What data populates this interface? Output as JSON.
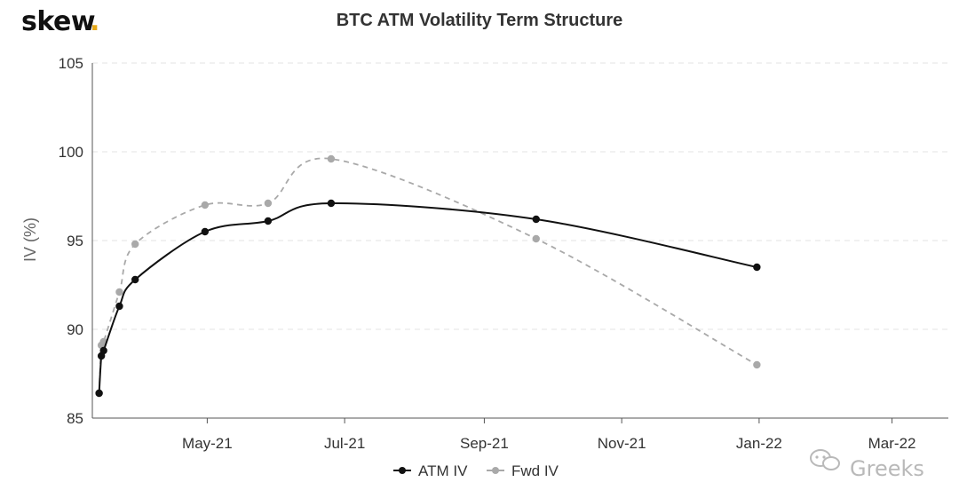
{
  "logo": {
    "text": "skew",
    "dot": ".",
    "dot_color": "#e6a817"
  },
  "watermark": {
    "text": "Greeks"
  },
  "colors": {
    "atm": "#111111",
    "fwd": "#a9a9a9",
    "grid": "#e3e3e3",
    "axis": "#555555"
  },
  "chart_data": {
    "type": "line",
    "title": "BTC ATM Volatility Term Structure",
    "ylabel": "IV (%)",
    "xlabel": "",
    "ylim": [
      85,
      105
    ],
    "yticks": [
      85,
      90,
      95,
      100,
      105
    ],
    "xlim": [
      "2021-03-11",
      "2022-03-26"
    ],
    "xticks": [
      {
        "date": "2021-05-01",
        "label": "May-21"
      },
      {
        "date": "2021-07-01",
        "label": "Jul-21"
      },
      {
        "date": "2021-09-01",
        "label": "Sep-21"
      },
      {
        "date": "2021-11-01",
        "label": "Nov-21"
      },
      {
        "date": "2022-01-01",
        "label": "Jan-22"
      },
      {
        "date": "2022-03-01",
        "label": "Mar-22"
      }
    ],
    "series": [
      {
        "name": "ATM IV",
        "style": "solid",
        "x": [
          "2021-03-14",
          "2021-03-15",
          "2021-03-16",
          "2021-03-23",
          "2021-03-30",
          "2021-04-30",
          "2021-05-28",
          "2021-06-25",
          "2021-09-24",
          "2021-12-31"
        ],
        "values": [
          86.4,
          88.5,
          88.8,
          91.3,
          92.8,
          95.5,
          96.1,
          97.1,
          96.2,
          93.5
        ]
      },
      {
        "name": "Fwd IV",
        "style": "dashed",
        "x": [
          "2021-03-14",
          "2021-03-15",
          "2021-03-16",
          "2021-03-23",
          "2021-03-30",
          "2021-04-30",
          "2021-05-28",
          "2021-06-25",
          "2021-09-24",
          "2021-12-31"
        ],
        "values": [
          86.4,
          89.1,
          89.3,
          92.1,
          94.8,
          97.0,
          97.1,
          99.6,
          95.1,
          88.0
        ]
      }
    ],
    "legend": {
      "position": "bottom-center"
    }
  }
}
